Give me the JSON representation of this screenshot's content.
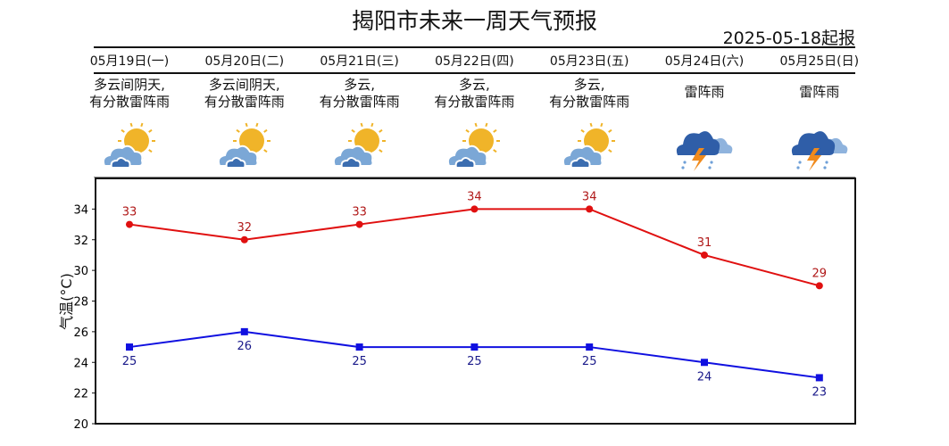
{
  "title": "揭阳市未来一周天气预报",
  "issued": "2025-05-18起报",
  "days": [
    {
      "date": "05月19日(一)",
      "desc1": "多云间阴天,",
      "desc2": "有分散雷阵雨",
      "icon": "partly-cloudy-sun-icon"
    },
    {
      "date": "05月20日(二)",
      "desc1": "多云间阴天,",
      "desc2": "有分散雷阵雨",
      "icon": "partly-cloudy-sun-icon"
    },
    {
      "date": "05月21日(三)",
      "desc1": "多云,",
      "desc2": "有分散雷阵雨",
      "icon": "partly-cloudy-sun-icon"
    },
    {
      "date": "05月22日(四)",
      "desc1": "多云,",
      "desc2": "有分散雷阵雨",
      "icon": "partly-cloudy-sun-icon"
    },
    {
      "date": "05月23日(五)",
      "desc1": "多云,",
      "desc2": "有分散雷阵雨",
      "icon": "partly-cloudy-sun-icon"
    },
    {
      "date": "05月24日(六)",
      "desc1": "雷阵雨",
      "desc2": "",
      "icon": "thunderstorm-icon"
    },
    {
      "date": "05月25日(日)",
      "desc1": "雷阵雨",
      "desc2": "",
      "icon": "thunderstorm-icon"
    }
  ],
  "chart_data": {
    "type": "line",
    "categories": [
      "05月19日",
      "05月20日",
      "05月21日",
      "05月22日",
      "05月23日",
      "05月24日",
      "05月25日"
    ],
    "series": [
      {
        "values": [
          33,
          32,
          33,
          34,
          34,
          31,
          29
        ],
        "color": "#e01010",
        "marker": "circle"
      },
      {
        "values": [
          25,
          26,
          25,
          25,
          25,
          24,
          23
        ],
        "color": "#1010e0",
        "marker": "square"
      }
    ],
    "ylabel": "气温(°C)",
    "ylim": [
      20,
      36
    ],
    "yticks": [
      "20",
      "22",
      "24",
      "26",
      "28",
      "30",
      "32",
      "34"
    ],
    "grid": false
  }
}
